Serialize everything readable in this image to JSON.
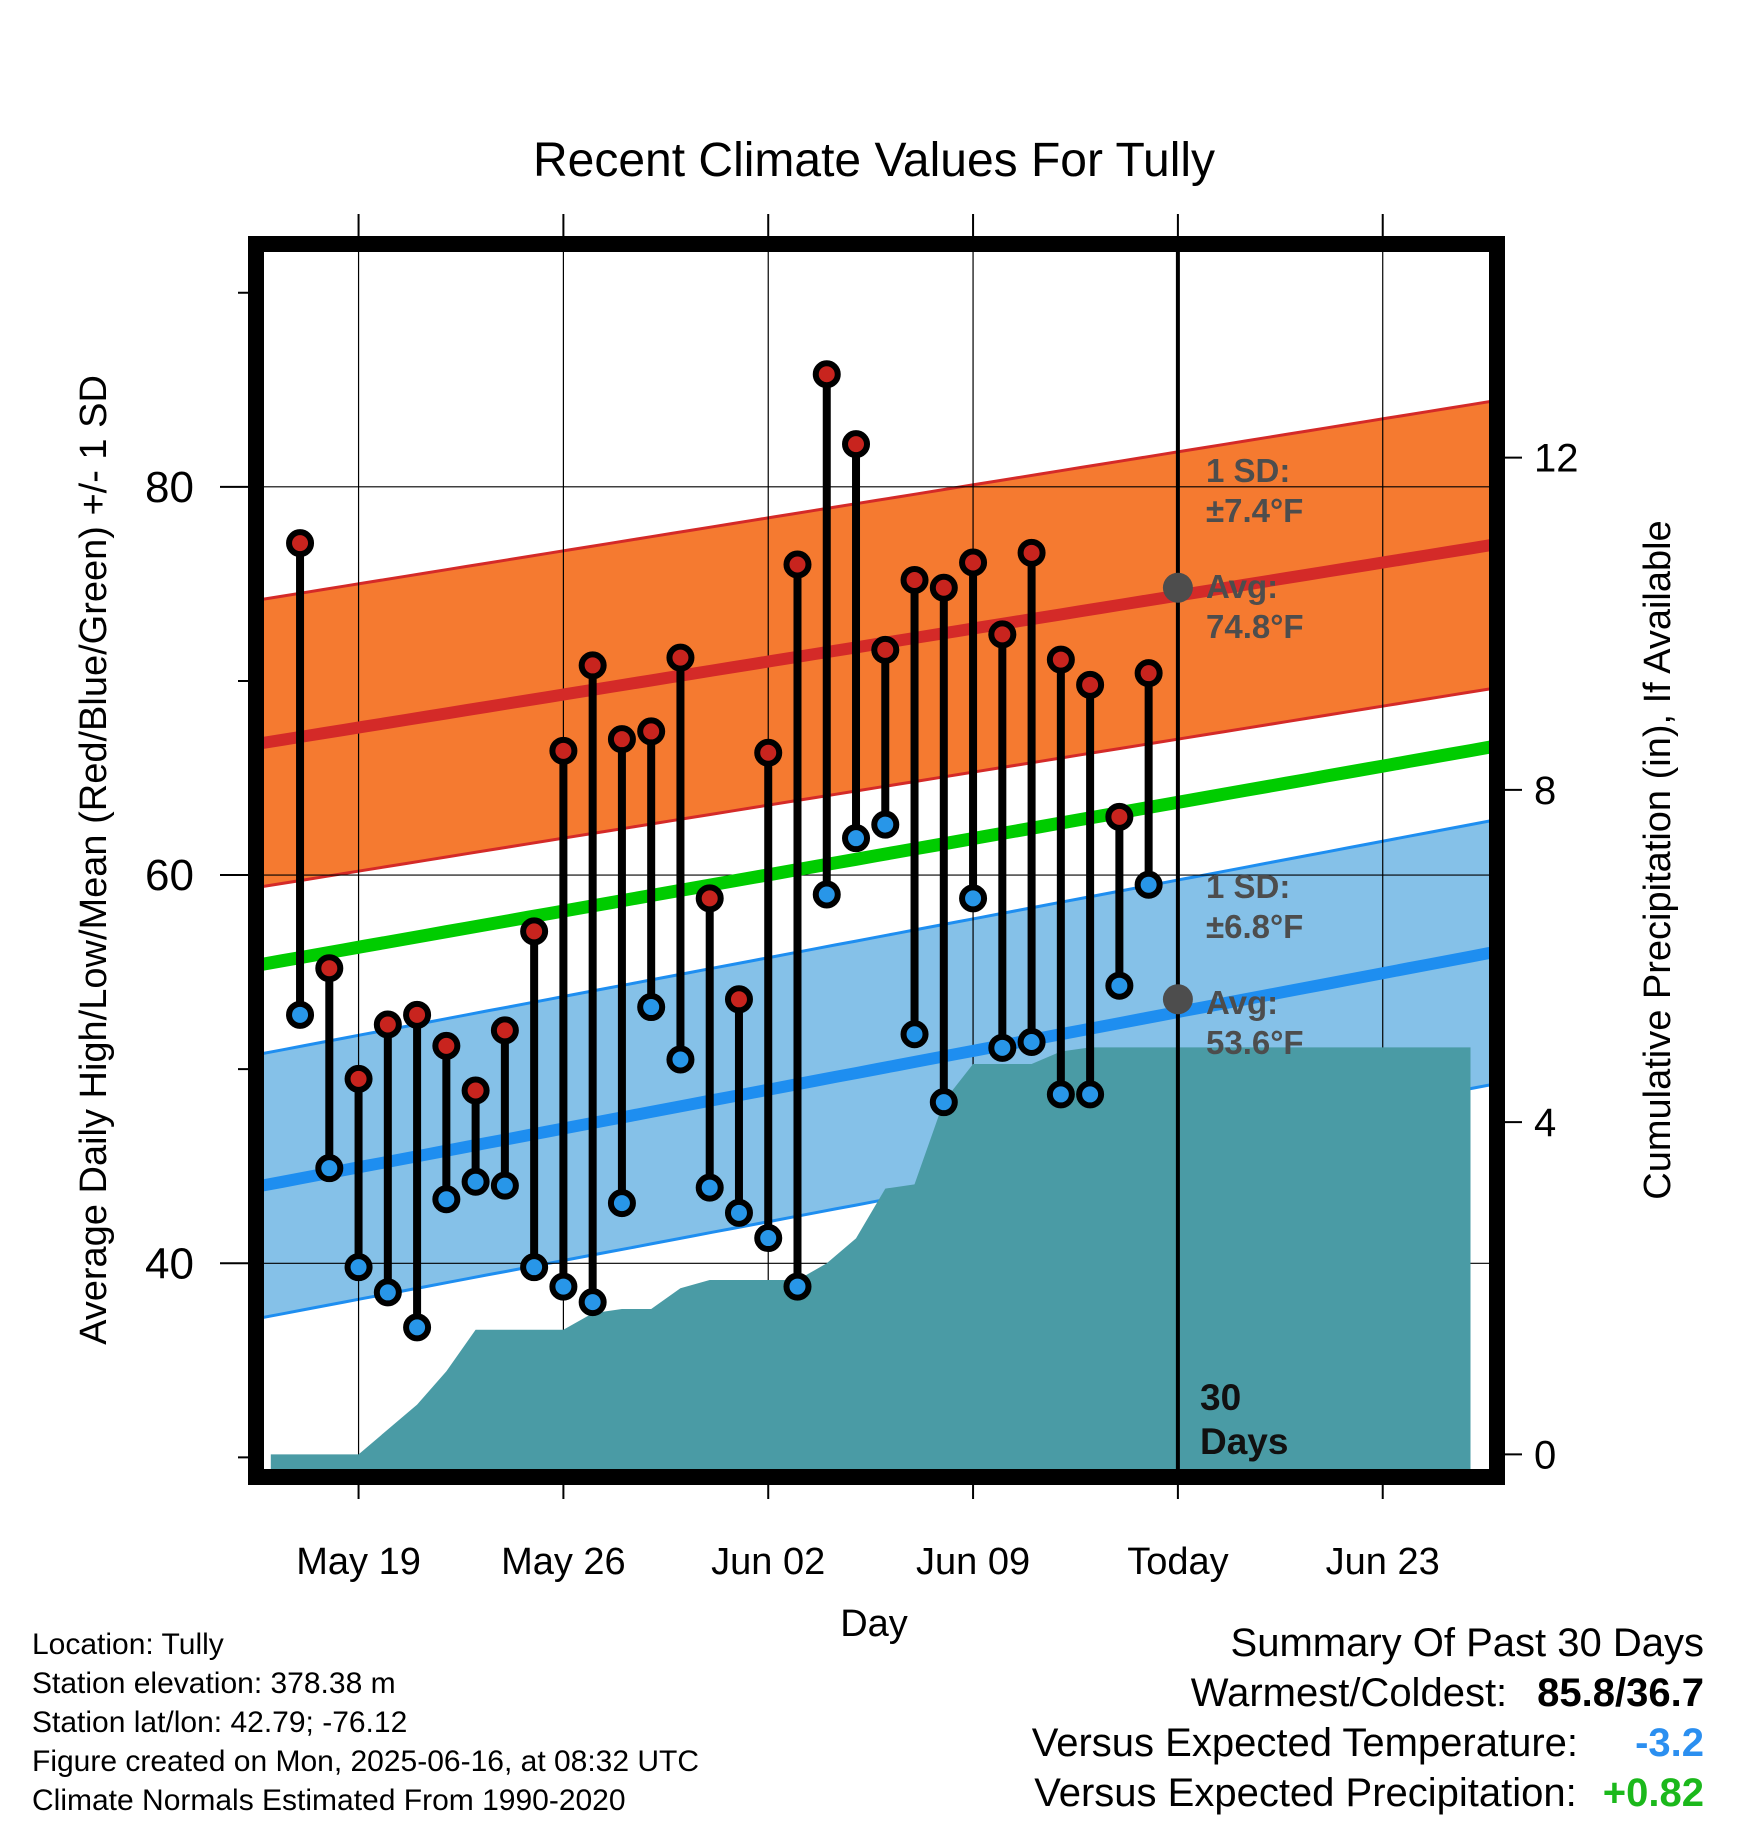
{
  "chart_data": {
    "type": "line",
    "title": "Recent Climate Values For Tully",
    "xlabel": "Day",
    "ylabel": "Average Daily High/Low/Mean (Red/Blue/Green) +/- 1 SD",
    "y2label": "Cumulative Precipitation (in), If Available",
    "x_tick_labels": [
      "May 19",
      "May 26",
      "Jun 02",
      "Jun 09",
      "Today",
      "Jun 23"
    ],
    "x_tick_days": [
      3,
      10,
      17,
      24,
      31,
      38
    ],
    "xlim": [
      -0.3,
      41.7
    ],
    "ylim": [
      29.3,
      92.2
    ],
    "y2lim": [
      -0.2,
      14.5
    ],
    "y_ticks": [
      40,
      60,
      80
    ],
    "y2_ticks": [
      0,
      4,
      8,
      12
    ],
    "today_day": 31,
    "today_label": "30 Days",
    "highs": [
      77.1,
      55.2,
      49.5,
      52.3,
      52.8,
      51.2,
      48.9,
      52.0,
      57.1,
      66.4,
      70.8,
      67.0,
      67.4,
      71.2,
      58.8,
      53.6,
      66.3,
      76.0,
      85.8,
      82.2,
      71.6,
      75.2,
      74.8,
      76.1,
      72.4,
      76.6,
      71.1,
      69.8,
      63.0,
      70.4
    ],
    "lows": [
      52.8,
      44.9,
      39.8,
      38.5,
      36.7,
      43.3,
      44.2,
      44.0,
      39.8,
      38.8,
      38.0,
      43.1,
      53.2,
      50.5,
      43.9,
      42.6,
      41.3,
      38.8,
      59.0,
      61.9,
      62.6,
      51.8,
      48.3,
      58.8,
      51.1,
      51.4,
      48.7,
      48.7,
      54.3,
      59.5
    ],
    "normal_high_range": [
      66.8,
      77.0
    ],
    "normal_low_range": [
      44.0,
      56.0
    ],
    "normal_mean_range": [
      55.4,
      66.6
    ],
    "high_sd_f": 7.4,
    "low_sd_f": 6.8,
    "normal_high_today": 74.8,
    "normal_low_today": 53.6,
    "high_sd_label": "1 SD:",
    "high_sd_text": "±7.4°F",
    "high_avg_label": "Avg:",
    "high_avg_text": "74.8°F",
    "low_sd_label": "1 SD:",
    "low_sd_text": "±6.8°F",
    "low_avg_label": "Avg:",
    "low_avg_text": "53.6°F",
    "cumulative_precip_in": [
      0.0,
      0.0,
      0.0,
      0.0,
      0.3,
      0.6,
      1.0,
      1.5,
      1.5,
      1.5,
      1.5,
      1.7,
      1.75,
      1.75,
      2.0,
      2.1,
      2.1,
      2.1,
      2.1,
      2.3,
      2.6,
      3.2,
      3.25,
      4.25,
      4.7,
      4.7,
      4.7,
      4.85,
      4.9,
      4.9,
      4.9,
      4.9,
      4.9,
      4.9,
      4.9,
      4.9,
      4.9,
      4.9,
      4.9,
      4.9,
      4.9,
      4.9
    ],
    "colors": {
      "high_band": "#f57a30",
      "high_line": "#d42a28",
      "low_band": "#85c1e8",
      "low_line": "#1e8ef0",
      "mean_line": "#00cc00",
      "precip": "#4a9ba5",
      "high_dot": "#c8241e",
      "low_dot": "#2896e8",
      "annotation": "#4d4d4d"
    }
  },
  "info": {
    "location": "Location: Tully",
    "elevation": "Station elevation: 378.38 m",
    "latlon": "Station lat/lon: 42.79; -76.12",
    "created": "Figure created on Mon, 2025-06-16, at 08:32 UTC",
    "normals": "Climate Normals Estimated From 1990-2020"
  },
  "summary": {
    "title": "Summary Of Past 30 Days",
    "warm_cold_label": "Warmest/Coldest:",
    "warm_cold_value": "85.8/36.7",
    "temp_label": "Versus Expected Temperature:",
    "temp_value": "-3.2",
    "temp_color": "#2b8ff0",
    "precip_label": "Versus Expected Precipitation:",
    "precip_value": "+0.82",
    "precip_color": "#1bb81b"
  }
}
